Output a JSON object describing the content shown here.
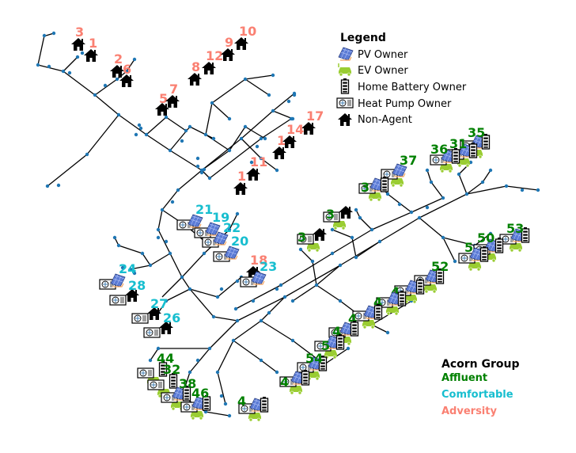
{
  "legend": {
    "title": "Legend",
    "items": [
      {
        "label": "PV Owner",
        "icon": "pv-panel-icon"
      },
      {
        "label": "EV Owner",
        "icon": "ev-car-icon"
      },
      {
        "label": "Home Battery Owner",
        "icon": "battery-icon"
      },
      {
        "label": "Heat Pump Owner",
        "icon": "heat-pump-icon"
      },
      {
        "label": "Non-Agent",
        "icon": "house-icon"
      }
    ]
  },
  "acorn": {
    "title": "Acorn Group",
    "groups": [
      {
        "label": "Affluent",
        "color": "#008000"
      },
      {
        "label": "Comfortable",
        "color": "#17becf"
      },
      {
        "label": "Adversity",
        "color": "#fa8072"
      }
    ]
  },
  "colors": {
    "network_line": "#000000",
    "network_node": "#1f77b4",
    "pv": "#5b7bd5",
    "ev": "#9acd32"
  },
  "households": [
    {
      "id": "1",
      "group": "Adversity",
      "pv": false,
      "ev": false,
      "battery": false,
      "heat_pump": false
    },
    {
      "id": "2",
      "group": "Adversity",
      "pv": false,
      "ev": false,
      "battery": false,
      "heat_pump": false
    },
    {
      "id": "3",
      "group": "Adversity",
      "pv": false,
      "ev": false,
      "battery": false,
      "heat_pump": false
    },
    {
      "id": "6",
      "group": "Adversity",
      "pv": false,
      "ev": false,
      "battery": false,
      "heat_pump": false
    },
    {
      "id": "5",
      "group": "Adversity",
      "pv": false,
      "ev": false,
      "battery": false,
      "heat_pump": false
    },
    {
      "id": "7",
      "group": "Adversity",
      "pv": false,
      "ev": false,
      "battery": false,
      "heat_pump": false
    },
    {
      "id": "8",
      "group": "Adversity",
      "pv": false,
      "ev": false,
      "battery": false,
      "heat_pump": false
    },
    {
      "id": "12",
      "group": "Adversity",
      "pv": false,
      "ev": false,
      "battery": false,
      "heat_pump": false
    },
    {
      "id": "9",
      "group": "Adversity",
      "pv": false,
      "ev": false,
      "battery": false,
      "heat_pump": false
    },
    {
      "id": "10",
      "group": "Adversity",
      "pv": false,
      "ev": false,
      "battery": false,
      "heat_pump": false
    },
    {
      "id": "17",
      "group": "Adversity",
      "pv": false,
      "ev": false,
      "battery": false,
      "heat_pump": false
    },
    {
      "id": "14",
      "group": "Adversity",
      "pv": false,
      "ev": false,
      "battery": false,
      "heat_pump": false
    },
    {
      "id": "1",
      "group": "Adversity",
      "pv": false,
      "ev": false,
      "battery": false,
      "heat_pump": false
    },
    {
      "id": "11",
      "group": "Adversity",
      "pv": false,
      "ev": false,
      "battery": false,
      "heat_pump": false
    },
    {
      "id": "1",
      "group": "Adversity",
      "pv": false,
      "ev": false,
      "battery": false,
      "heat_pump": false
    },
    {
      "id": "18",
      "group": "Adversity",
      "pv": false,
      "ev": false,
      "battery": false,
      "heat_pump": false
    },
    {
      "id": "21",
      "group": "Comfortable",
      "pv": true,
      "ev": false,
      "battery": false,
      "heat_pump": true
    },
    {
      "id": "19",
      "group": "Comfortable",
      "pv": true,
      "ev": false,
      "battery": false,
      "heat_pump": true
    },
    {
      "id": "22",
      "group": "Comfortable",
      "pv": true,
      "ev": false,
      "battery": false,
      "heat_pump": true
    },
    {
      "id": "20",
      "group": "Comfortable",
      "pv": true,
      "ev": false,
      "battery": false,
      "heat_pump": true
    },
    {
      "id": "23",
      "group": "Comfortable",
      "pv": true,
      "ev": false,
      "battery": false,
      "heat_pump": true
    },
    {
      "id": "24",
      "group": "Comfortable",
      "pv": true,
      "ev": false,
      "battery": false,
      "heat_pump": true
    },
    {
      "id": "28",
      "group": "Comfortable",
      "pv": false,
      "ev": false,
      "battery": false,
      "heat_pump": true
    },
    {
      "id": "27",
      "group": "Comfortable",
      "pv": false,
      "ev": false,
      "battery": false,
      "heat_pump": true
    },
    {
      "id": "26",
      "group": "Comfortable",
      "pv": false,
      "ev": false,
      "battery": false,
      "heat_pump": true
    },
    {
      "id": "35",
      "group": "Affluent",
      "pv": true,
      "ev": true,
      "battery": true,
      "heat_pump": true
    },
    {
      "id": "31",
      "group": "Affluent",
      "pv": true,
      "ev": true,
      "battery": true,
      "heat_pump": true
    },
    {
      "id": "36",
      "group": "Affluent",
      "pv": true,
      "ev": true,
      "battery": true,
      "heat_pump": true
    },
    {
      "id": "37",
      "group": "Affluent",
      "pv": true,
      "ev": true,
      "battery": false,
      "heat_pump": true
    },
    {
      "id": "3",
      "group": "Affluent",
      "pv": true,
      "ev": true,
      "battery": true,
      "heat_pump": true
    },
    {
      "id": "3",
      "group": "Affluent",
      "pv": false,
      "ev": true,
      "battery": false,
      "heat_pump": true
    },
    {
      "id": "3",
      "group": "Affluent",
      "pv": false,
      "ev": true,
      "battery": false,
      "heat_pump": true
    },
    {
      "id": "53",
      "group": "Affluent",
      "pv": true,
      "ev": true,
      "battery": true,
      "heat_pump": true
    },
    {
      "id": "50",
      "group": "Affluent",
      "pv": true,
      "ev": true,
      "battery": true,
      "heat_pump": true
    },
    {
      "id": "5",
      "group": "Affluent",
      "pv": true,
      "ev": true,
      "battery": true,
      "heat_pump": true
    },
    {
      "id": "52",
      "group": "Affluent",
      "pv": true,
      "ev": true,
      "battery": true,
      "heat_pump": true
    },
    {
      "id": "4",
      "group": "Affluent",
      "pv": true,
      "ev": true,
      "battery": true,
      "heat_pump": true
    },
    {
      "id": "4",
      "group": "Affluent",
      "pv": true,
      "ev": true,
      "battery": true,
      "heat_pump": true
    },
    {
      "id": "4",
      "group": "Affluent",
      "pv": true,
      "ev": true,
      "battery": true,
      "heat_pump": true
    },
    {
      "id": "4",
      "group": "Affluent",
      "pv": true,
      "ev": true,
      "battery": true,
      "heat_pump": true
    },
    {
      "id": "5",
      "group": "Affluent",
      "pv": true,
      "ev": true,
      "battery": true,
      "heat_pump": true
    },
    {
      "id": "54",
      "group": "Affluent",
      "pv": true,
      "ev": true,
      "battery": true,
      "heat_pump": true
    },
    {
      "id": "4",
      "group": "Affluent",
      "pv": true,
      "ev": true,
      "battery": true,
      "heat_pump": true
    },
    {
      "id": "4",
      "group": "Affluent",
      "pv": true,
      "ev": true,
      "battery": true,
      "heat_pump": true
    },
    {
      "id": "44",
      "group": "Affluent",
      "pv": false,
      "ev": true,
      "battery": true,
      "heat_pump": true
    },
    {
      "id": "32",
      "group": "Affluent",
      "pv": false,
      "ev": true,
      "battery": true,
      "heat_pump": true
    },
    {
      "id": "38",
      "group": "Affluent",
      "pv": true,
      "ev": true,
      "battery": true,
      "heat_pump": true
    },
    {
      "id": "46",
      "group": "Affluent",
      "pv": true,
      "ev": true,
      "battery": true,
      "heat_pump": true
    }
  ]
}
